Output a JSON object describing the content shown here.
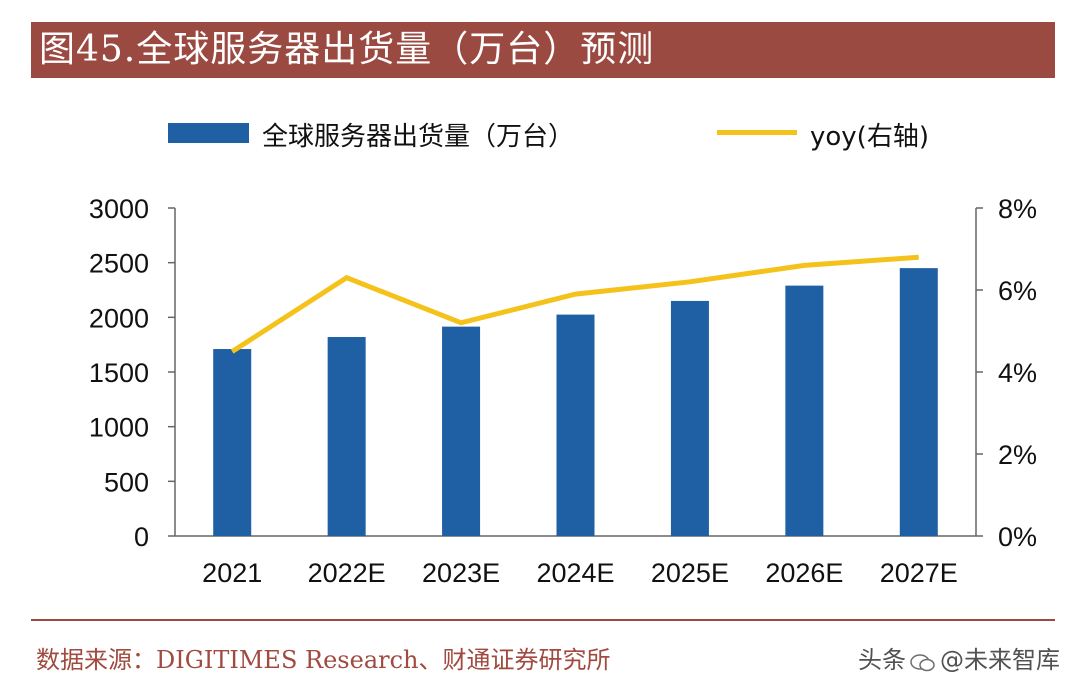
{
  "title": "图45.全球服务器出货量（万台）预测",
  "source": "数据来源：DIGITIMES Research、财通证券研究所",
  "watermark": {
    "prefix": "头条",
    "handle": "@未来智库"
  },
  "colors": {
    "title_bg": "#9b4a42",
    "bar": "#1f5fa3",
    "line": "#f5c21c",
    "footer_text": "#a04a40"
  },
  "chart_data": {
    "type": "bar",
    "title": "图45.全球服务器出货量（万台）预测",
    "categories": [
      "2021",
      "2022E",
      "2023E",
      "2024E",
      "2025E",
      "2026E",
      "2027E"
    ],
    "series": [
      {
        "name": "全球服务器出货量（万台）",
        "type": "bar",
        "axis": "left",
        "values": [
          1710,
          1820,
          1915,
          2025,
          2150,
          2290,
          2450
        ]
      },
      {
        "name": "yoy(右轴)",
        "type": "line",
        "axis": "right",
        "values": [
          4.5,
          6.3,
          5.2,
          5.9,
          6.2,
          6.6,
          6.8
        ]
      }
    ],
    "y_left": {
      "min": 0,
      "max": 3000,
      "ticks": [
        "0",
        "500",
        "1000",
        "1500",
        "2000",
        "2500",
        "3000"
      ]
    },
    "y_right": {
      "min": 0,
      "max": 8,
      "ticks": [
        "0%",
        "2%",
        "4%",
        "6%",
        "8%"
      ]
    },
    "legend": [
      "全球服务器出货量（万台）",
      "yoy(右轴)"
    ],
    "legend_position": "top",
    "grid": false
  }
}
